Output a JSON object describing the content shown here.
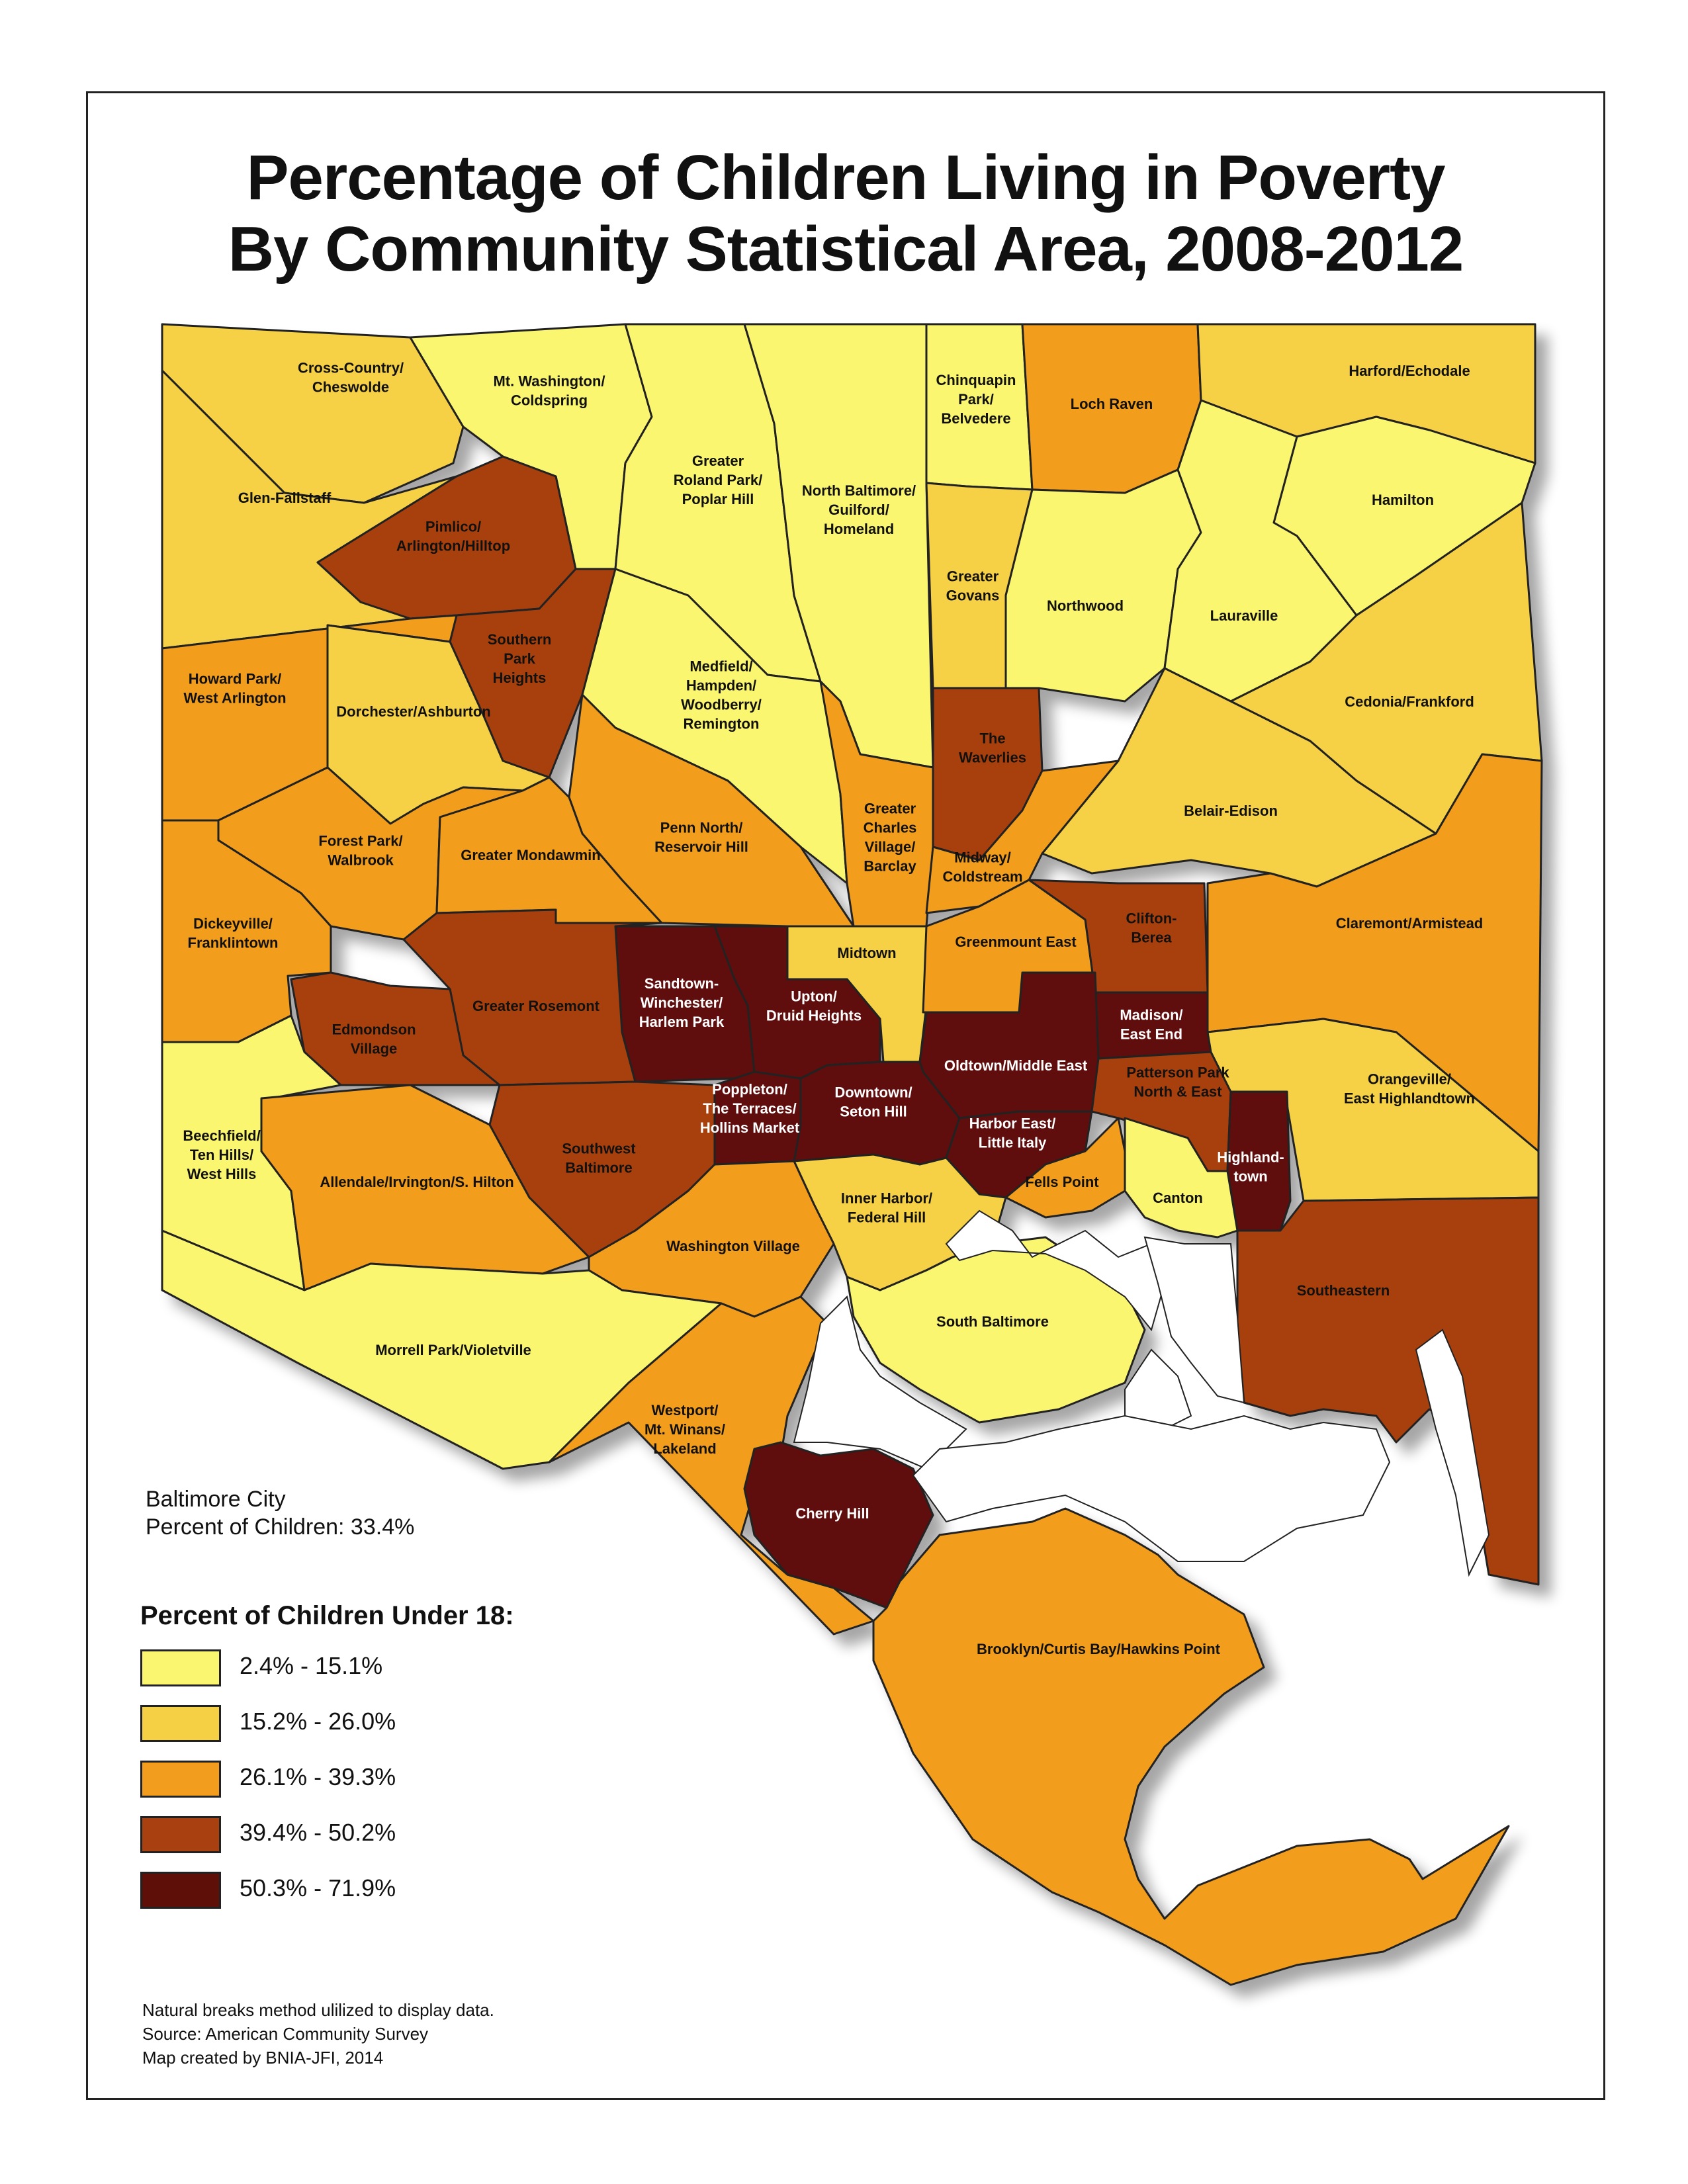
{
  "title_lines": [
    "Percentage of Children Living in Poverty",
    "By Community Statistical Area, 2008-2012"
  ],
  "colors": {
    "class1": "#fbf66f",
    "class2": "#f6d044",
    "class3": "#f29d1e",
    "class4": "#a8400f",
    "class5": "#5e0f08",
    "water": "#ffffff",
    "boundary": "#222222"
  },
  "areas": [
    {
      "name": "Cross-Country/ Cheswolde",
      "label_lines": [
        "Cross-Country/",
        "Cheswolde"
      ],
      "class": 2
    },
    {
      "name": "Mt. Washington/ Coldspring",
      "label_lines": [
        "Mt. Washington/",
        "Coldspring"
      ],
      "class": 1
    },
    {
      "name": "Greater Roland Park/ Poplar Hill",
      "label_lines": [
        "Greater",
        "Roland Park/",
        "Poplar Hill"
      ],
      "class": 1
    },
    {
      "name": "North Baltimore/ Guilford/ Homeland",
      "label_lines": [
        "North Baltimore/",
        "Guilford/",
        "Homeland"
      ],
      "class": 1
    },
    {
      "name": "Chinquapin Park/ Belvedere",
      "label_lines": [
        "Chinquapin",
        "Park/",
        "Belvedere"
      ],
      "class": 1
    },
    {
      "name": "Loch Raven",
      "label_lines": [
        "Loch Raven"
      ],
      "class": 3
    },
    {
      "name": "Harford/Echodale",
      "label_lines": [
        "Harford/Echodale"
      ],
      "class": 2
    },
    {
      "name": "Hamilton",
      "label_lines": [
        "Hamilton"
      ],
      "class": 1
    },
    {
      "name": "Glen-Fallstaff",
      "label_lines": [
        "Glen-Fallstaff"
      ],
      "class": 2
    },
    {
      "name": "Pimlico/ Arlington/Hilltop",
      "label_lines": [
        "Pimlico/",
        "Arlington/Hilltop"
      ],
      "class": 4
    },
    {
      "name": "Greater Govans",
      "label_lines": [
        "Greater",
        "Govans"
      ],
      "class": 2
    },
    {
      "name": "Northwood",
      "label_lines": [
        "Northwood"
      ],
      "class": 1
    },
    {
      "name": "Lauraville",
      "label_lines": [
        "Lauraville"
      ],
      "class": 1
    },
    {
      "name": "Southern Park Heights",
      "label_lines": [
        "Southern",
        "Park",
        "Heights"
      ],
      "class": 4
    },
    {
      "name": "Howard Park/ West Arlington",
      "label_lines": [
        "Howard Park/",
        "West Arlington"
      ],
      "class": 3
    },
    {
      "name": "Medfield/ Hampden/ Woodberry/ Remington",
      "label_lines": [
        "Medfield/",
        "Hampden/",
        "Woodberry/",
        "Remington"
      ],
      "class": 1
    },
    {
      "name": "Dorchester/Ashburton",
      "label_lines": [
        "Dorchester/Ashburton"
      ],
      "class": 2
    },
    {
      "name": "The Waverlies",
      "label_lines": [
        "The",
        "Waverlies"
      ],
      "class": 4
    },
    {
      "name": "Cedonia/Frankford",
      "label_lines": [
        "Cedonia/Frankford"
      ],
      "class": 2
    },
    {
      "name": "Greater Charles Village/ Barclay",
      "label_lines": [
        "Greater",
        "Charles",
        "Village/",
        "Barclay"
      ],
      "class": 3
    },
    {
      "name": "Belair-Edison",
      "label_lines": [
        "Belair-Edison"
      ],
      "class": 2
    },
    {
      "name": "Forest Park/ Walbrook",
      "label_lines": [
        "Forest Park/",
        "Walbrook"
      ],
      "class": 3
    },
    {
      "name": "Penn North/ Reservoir Hill",
      "label_lines": [
        "Penn North/",
        "Reservoir Hill"
      ],
      "class": 3
    },
    {
      "name": "Greater Mondawmin",
      "label_lines": [
        "Greater Mondawmin"
      ],
      "class": 3
    },
    {
      "name": "Midway/ Coldstream",
      "label_lines": [
        "Midway/",
        "Coldstream"
      ],
      "class": 3
    },
    {
      "name": "Dickeyville/ Franklintown",
      "label_lines": [
        "Dickeyville/",
        "Franklintown"
      ],
      "class": 3
    },
    {
      "name": "Clifton-Berea",
      "label_lines": [
        "Clifton-",
        "Berea"
      ],
      "class": 4
    },
    {
      "name": "Claremont/Armistead",
      "label_lines": [
        "Claremont/Armistead"
      ],
      "class": 3
    },
    {
      "name": "Midtown",
      "label_lines": [
        "Midtown"
      ],
      "class": 2
    },
    {
      "name": "Greenmount East",
      "label_lines": [
        "Greenmount East"
      ],
      "class": 3
    },
    {
      "name": "Sandtown-Winchester/ Harlem Park",
      "label_lines": [
        "Sandtown-",
        "Winchester/",
        "Harlem Park"
      ],
      "class": 5
    },
    {
      "name": "Upton/ Druid Heights",
      "label_lines": [
        "Upton/",
        "Druid Heights"
      ],
      "class": 5
    },
    {
      "name": "Greater Rosemont",
      "label_lines": [
        "Greater Rosemont"
      ],
      "class": 4
    },
    {
      "name": "Edmondson Village",
      "label_lines": [
        "Edmondson",
        "Village"
      ],
      "class": 4
    },
    {
      "name": "Madison/ East End",
      "label_lines": [
        "Madison/",
        "East End"
      ],
      "class": 5
    },
    {
      "name": "Oldtown/Middle East",
      "label_lines": [
        "Oldtown/Middle East"
      ],
      "class": 5
    },
    {
      "name": "Patterson Park North & East",
      "label_lines": [
        "Patterson Park",
        "North & East"
      ],
      "class": 4
    },
    {
      "name": "Orangeville/ East Highlandtown",
      "label_lines": [
        "Orangeville/",
        "East Highlandtown"
      ],
      "class": 2
    },
    {
      "name": "Beechfield/ Ten Hills/ West Hills",
      "label_lines": [
        "Beechfield/",
        "Ten Hills/",
        "West Hills"
      ],
      "class": 1
    },
    {
      "name": "Downtown/ Seton Hill",
      "label_lines": [
        "Downtown/",
        "Seton Hill"
      ],
      "class": 5
    },
    {
      "name": "Poppleton/ The Terraces/ Hollins Market",
      "label_lines": [
        "Poppleton/",
        "The Terraces/",
        "Hollins Market"
      ],
      "class": 5
    },
    {
      "name": "Southwest Baltimore",
      "label_lines": [
        "Southwest",
        "Baltimore"
      ],
      "class": 4
    },
    {
      "name": "Harbor East/ Little Italy",
      "label_lines": [
        "Harbor East/",
        "Little Italy"
      ],
      "class": 5
    },
    {
      "name": "Highlandtown",
      "label_lines": [
        "Highland-",
        "town"
      ],
      "class": 5
    },
    {
      "name": "Allendale/Irvington/S. Hilton",
      "label_lines": [
        "Allendale/Irvington/S. Hilton"
      ],
      "class": 3
    },
    {
      "name": "Fells Point",
      "label_lines": [
        "Fells Point"
      ],
      "class": 3
    },
    {
      "name": "Canton",
      "label_lines": [
        "Canton"
      ],
      "class": 1
    },
    {
      "name": "Inner Harbor/ Federal Hill",
      "label_lines": [
        "Inner Harbor/",
        "Federal Hill"
      ],
      "class": 2
    },
    {
      "name": "Washington Village",
      "label_lines": [
        "Washington Village"
      ],
      "class": 3
    },
    {
      "name": "Southeastern",
      "label_lines": [
        "Southeastern"
      ],
      "class": 4
    },
    {
      "name": "South Baltimore",
      "label_lines": [
        "South Baltimore"
      ],
      "class": 1
    },
    {
      "name": "Morrell Park/Violetville",
      "label_lines": [
        "Morrell Park/Violetville"
      ],
      "class": 1
    },
    {
      "name": "Westport/ Mt. Winans/ Lakeland",
      "label_lines": [
        "Westport/",
        "Mt. Winans/",
        "Lakeland"
      ],
      "class": 3
    },
    {
      "name": "Cherry Hill",
      "label_lines": [
        "Cherry Hill"
      ],
      "class": 5
    },
    {
      "name": "Brooklyn/Curtis Bay/Hawkins Point",
      "label_lines": [
        "Brooklyn/Curtis Bay/Hawkins Point"
      ],
      "class": 3
    }
  ],
  "citywide": {
    "line1": "Baltimore City",
    "line2": "Percent of Children: 33.4%",
    "value_percent": 33.4
  },
  "legend": {
    "title": "Percent of Children Under 18:",
    "items": [
      {
        "label": "2.4% - 15.1%",
        "color": "#fbf66f"
      },
      {
        "label": "15.2% - 26.0%",
        "color": "#f6d044"
      },
      {
        "label": "26.1% - 39.3%",
        "color": "#f29d1e"
      },
      {
        "label": "39.4% - 50.2%",
        "color": "#a8400f"
      },
      {
        "label": "50.3% - 71.9%",
        "color": "#5e0f08"
      }
    ]
  },
  "notes": [
    "Natural breaks method ulilized to display data.",
    "Source: American Community Survey",
    "Map created by BNIA-JFI, 2014"
  ]
}
